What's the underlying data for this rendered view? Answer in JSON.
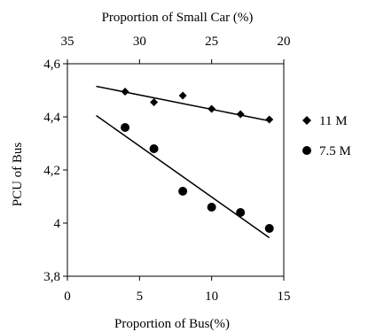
{
  "chart_data": {
    "type": "scatter",
    "xlabel": "Proportion of Bus(%)",
    "x2label": "Proportion of Small Car (%)",
    "ylabel": "PCU of Bus",
    "xlim": [
      0,
      15
    ],
    "x2lim": [
      35,
      20
    ],
    "ylim": [
      3.8,
      4.6
    ],
    "x_ticks": [
      0,
      5,
      10,
      15
    ],
    "x_tick_labels": [
      "0",
      "5",
      "10",
      "15"
    ],
    "x2_ticks": [
      35,
      30,
      25,
      20
    ],
    "x2_tick_labels": [
      "35",
      "30",
      "25",
      "20"
    ],
    "y_ticks": [
      3.8,
      4.0,
      4.2,
      4.4,
      4.6
    ],
    "y_tick_labels": [
      "3,8",
      "4",
      "4,2",
      "4,4",
      "4,6"
    ],
    "grid": false,
    "legend_position": "right",
    "series": [
      {
        "name": "11 M",
        "marker": "diamond",
        "x": [
          4,
          6,
          8,
          10,
          12,
          14
        ],
        "y": [
          4.495,
          4.455,
          4.48,
          4.43,
          4.41,
          4.39
        ],
        "trendline": {
          "x": [
            2,
            14
          ],
          "y": [
            4.515,
            4.385
          ]
        }
      },
      {
        "name": "7.5 M",
        "marker": "circle",
        "x": [
          4,
          6,
          8,
          10,
          12,
          14
        ],
        "y": [
          4.36,
          4.28,
          4.12,
          4.06,
          4.04,
          3.98
        ],
        "trendline": {
          "x": [
            2,
            14
          ],
          "y": [
            4.405,
            3.945
          ]
        }
      }
    ]
  }
}
